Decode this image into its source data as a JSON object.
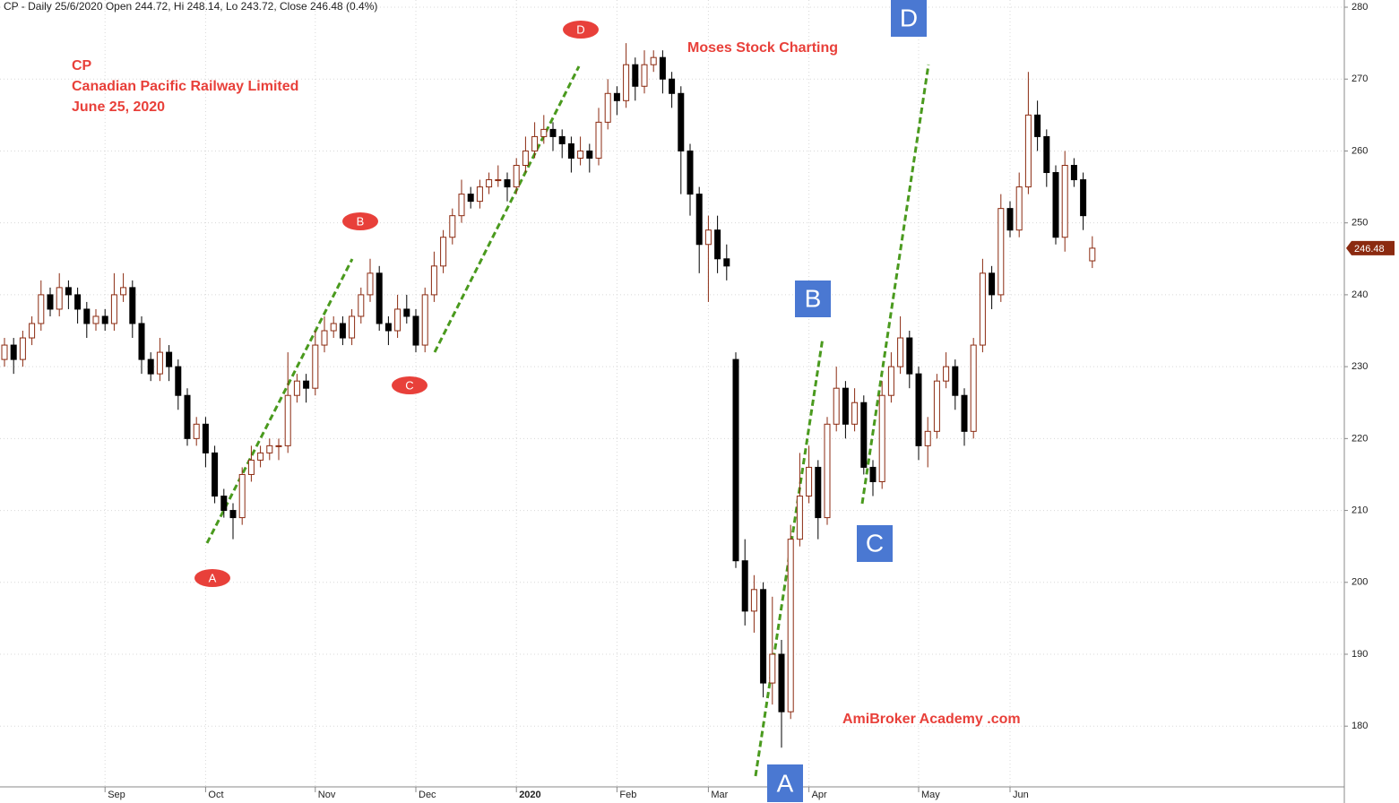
{
  "chart_data": {
    "type": "candlestick",
    "title": "CP - Daily 25/6/2020 Open 244.72, Hi 248.14, Lo 243.72, Close 246.48 (0.4%)",
    "texts": [
      "CP",
      "Canadian Pacific Railway Limited",
      "June 25, 2020",
      "Moses Stock Charting",
      "AmiBroker Academy .com"
    ],
    "annotations": [
      "A",
      "B",
      "C",
      "D",
      "A",
      "B",
      "C",
      "D"
    ],
    "categories": [
      null,
      null,
      null,
      null,
      null,
      null,
      null,
      null,
      null,
      null,
      null,
      "Sep",
      null,
      null,
      null,
      null,
      null,
      null,
      null,
      null,
      null,
      null,
      "Oct",
      null,
      null,
      null,
      null,
      null,
      null,
      null,
      null,
      null,
      null,
      null,
      "Nov",
      null,
      null,
      null,
      null,
      null,
      null,
      null,
      null,
      null,
      null,
      "Dec",
      null,
      null,
      null,
      null,
      null,
      null,
      null,
      null,
      null,
      null,
      "2020",
      null,
      null,
      null,
      null,
      null,
      null,
      null,
      null,
      null,
      null,
      "Feb",
      null,
      null,
      null,
      null,
      null,
      null,
      null,
      null,
      null,
      "Mar",
      null,
      null,
      null,
      null,
      null,
      null,
      null,
      null,
      null,
      null,
      "Apr",
      null,
      null,
      null,
      null,
      null,
      null,
      null,
      null,
      null,
      null,
      null,
      "May",
      null,
      null,
      null,
      null,
      null,
      null,
      null,
      null,
      null,
      "Jun",
      null,
      null,
      null,
      null,
      null,
      null,
      null,
      null,
      null
    ],
    "open": [
      231,
      233,
      231,
      234,
      236,
      240,
      238,
      241,
      240,
      238,
      236,
      237,
      236,
      240,
      241,
      236,
      231,
      229,
      232,
      230,
      226,
      220,
      222,
      218,
      212,
      210,
      209,
      215,
      217,
      218,
      219,
      219,
      226,
      228,
      227,
      233,
      235,
      236,
      234,
      237,
      240,
      243,
      236,
      235,
      238,
      237,
      233,
      240,
      244,
      248,
      251,
      254,
      253,
      255,
      256,
      256,
      255,
      258,
      260,
      262,
      263,
      262,
      261,
      259,
      260,
      259,
      264,
      268,
      267,
      272,
      269,
      272,
      273,
      270,
      268,
      260,
      254,
      247,
      249,
      245,
      231,
      203,
      196,
      199,
      186,
      190,
      182,
      206,
      212,
      216,
      209,
      222,
      227,
      222,
      225,
      216,
      214,
      226,
      230,
      234,
      229,
      219,
      221,
      228,
      230,
      226,
      221,
      233,
      243,
      240,
      252,
      249,
      255,
      265,
      262,
      257,
      248,
      258,
      256,
      244.72
    ],
    "high": [
      234,
      234,
      235,
      237,
      242,
      241,
      243,
      242,
      241,
      239,
      238,
      238,
      243,
      243,
      242,
      237,
      232,
      234,
      233,
      231,
      227,
      223,
      223,
      219,
      213,
      211,
      216,
      219,
      219,
      220,
      220,
      232,
      229,
      229,
      235,
      237,
      237,
      237,
      238,
      241,
      245,
      244,
      237,
      240,
      240,
      238,
      241,
      246,
      249,
      252,
      256,
      255,
      256,
      257,
      258,
      257,
      259,
      262,
      264,
      265,
      264,
      263,
      262,
      262,
      261,
      266,
      270,
      269,
      275,
      273,
      274,
      274,
      274,
      271,
      269,
      261,
      255,
      251,
      251,
      247,
      232,
      206,
      201,
      200,
      198,
      192,
      208,
      218,
      219,
      217,
      223,
      230,
      228,
      227,
      226,
      217,
      228,
      232,
      237,
      235,
      230,
      223,
      229,
      232,
      231,
      227,
      234,
      245,
      244,
      254,
      253,
      257,
      271,
      267,
      263,
      258,
      260,
      259,
      257,
      248.14
    ],
    "low": [
      230,
      229,
      230,
      233,
      235,
      237,
      237,
      238,
      236,
      234,
      235,
      235,
      235,
      239,
      234,
      229,
      228,
      228,
      228,
      224,
      219,
      219,
      216,
      211,
      209,
      206,
      208,
      214,
      216,
      217,
      217,
      218,
      225,
      225,
      226,
      232,
      234,
      233,
      233,
      236,
      239,
      235,
      233,
      234,
      236,
      232,
      232,
      239,
      243,
      247,
      250,
      252,
      252,
      254,
      255,
      253,
      254,
      257,
      259,
      261,
      260,
      259,
      257,
      258,
      257,
      258,
      263,
      265,
      266,
      267,
      268,
      271,
      268,
      266,
      254,
      251,
      243,
      239,
      243,
      242,
      202,
      194,
      193,
      184,
      183,
      177,
      181,
      205,
      211,
      206,
      208,
      221,
      220,
      221,
      215,
      212,
      213,
      225,
      229,
      227,
      217,
      216,
      220,
      227,
      224,
      219,
      220,
      232,
      238,
      239,
      248,
      248,
      254,
      260,
      255,
      247,
      246,
      255,
      249,
      243.72
    ],
    "close": [
      233,
      231,
      234,
      236,
      240,
      238,
      241,
      240,
      238,
      236,
      237,
      236,
      240,
      241,
      236,
      231,
      229,
      232,
      230,
      226,
      220,
      222,
      218,
      212,
      210,
      209,
      215,
      217,
      218,
      219,
      219,
      226,
      228,
      227,
      233,
      235,
      236,
      234,
      237,
      240,
      243,
      236,
      235,
      238,
      237,
      233,
      240,
      244,
      248,
      251,
      254,
      253,
      255,
      256,
      256,
      255,
      258,
      260,
      262,
      263,
      262,
      261,
      259,
      260,
      259,
      264,
      268,
      267,
      272,
      269,
      272,
      273,
      270,
      268,
      260,
      254,
      247,
      249,
      245,
      244,
      203,
      196,
      199,
      186,
      190,
      182,
      206,
      212,
      216,
      209,
      222,
      227,
      222,
      225,
      216,
      214,
      226,
      230,
      234,
      229,
      219,
      221,
      228,
      230,
      226,
      221,
      233,
      243,
      240,
      252,
      249,
      255,
      265,
      262,
      257,
      248,
      258,
      256,
      251,
      246.48
    ],
    "last_close_label": "246.48",
    "up_color": "#8b2a10",
    "down_color": "#000000",
    "ylim": [
      172.3,
      281
    ],
    "yticks": [
      180,
      190,
      200,
      210,
      220,
      230,
      240,
      250,
      260,
      270,
      280
    ],
    "grid": true
  }
}
